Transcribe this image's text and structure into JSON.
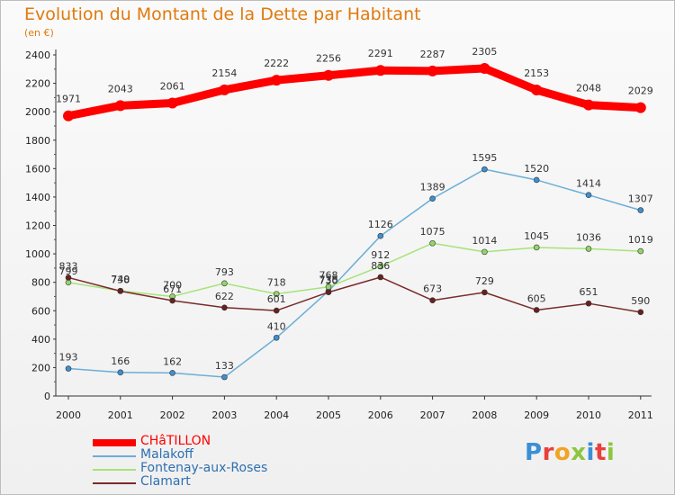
{
  "chart": {
    "title": "Evolution du Montant de la Dette par Habitant",
    "subtitle": "(en €)"
  },
  "logo": {
    "text": "Proxiti"
  },
  "chart_data": {
    "type": "line",
    "title": "Evolution du Montant de la Dette par Habitant",
    "subtitle": "(en €)",
    "xlabel": "",
    "ylabel": "",
    "x": [
      "2000",
      "2001",
      "2002",
      "2003",
      "2004",
      "2005",
      "2006",
      "2007",
      "2008",
      "2009",
      "2010",
      "2011"
    ],
    "ylim": [
      0,
      2400
    ],
    "yticks": [
      0,
      200,
      400,
      600,
      800,
      1000,
      1200,
      1400,
      1600,
      1800,
      2000,
      2200,
      2400
    ],
    "grid": false,
    "legend_position": "bottom-left",
    "series": [
      {
        "name": "CHâTILLON",
        "color": "#ff0000",
        "values": [
          1971,
          2043,
          2061,
          2154,
          2222,
          2256,
          2291,
          2287,
          2305,
          2153,
          2048,
          2029
        ]
      },
      {
        "name": "Malakoff",
        "color": "#6baed6",
        "values": [
          193,
          166,
          162,
          133,
          410,
          738,
          1126,
          1389,
          1595,
          1520,
          1414,
          1307
        ]
      },
      {
        "name": "Fontenay-aux-Roses",
        "color": "#a6e37a",
        "values": [
          799,
          740,
          700,
          793,
          718,
          768,
          912,
          1075,
          1014,
          1045,
          1036,
          1019
        ]
      },
      {
        "name": "Clamart",
        "color": "#7a2a2a",
        "values": [
          833,
          738,
          671,
          622,
          601,
          730,
          836,
          673,
          729,
          605,
          651,
          590
        ]
      }
    ]
  }
}
